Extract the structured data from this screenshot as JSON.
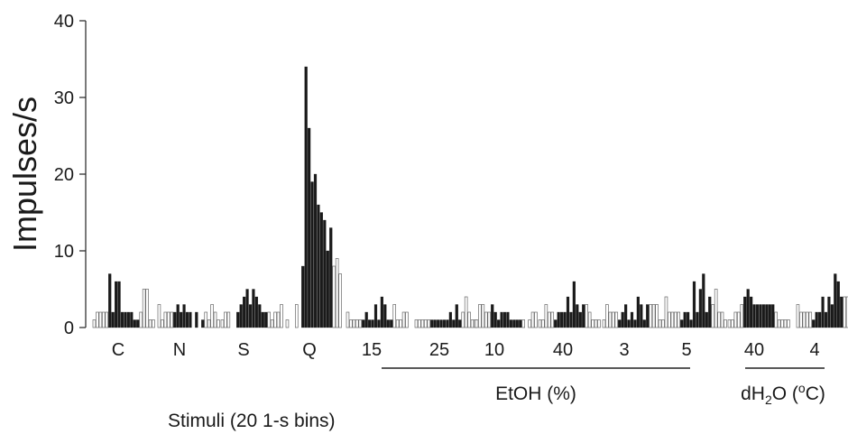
{
  "chart_data": {
    "type": "bar",
    "ylabel": "Impulses/s",
    "xlabel": "Stimuli (20 1-s bins)",
    "ylim": [
      0,
      40
    ],
    "yticks": [
      0,
      10,
      20,
      30,
      40
    ],
    "bins_per_stimulus": 20,
    "bin_encoding": "first 5 and last 5 bins = before/after stimulus (open bars); middle 10 bins = during stimulus (filled bars)",
    "groups": [
      {
        "label": "EtOH (%)",
        "members": [
          "15",
          "25",
          "10",
          "40",
          "3",
          "5"
        ]
      },
      {
        "label_main": "dH",
        "label_sub": "2",
        "label_rest": "O (",
        "label_sup": "o",
        "label_end": "C)",
        "members": [
          "40",
          "4"
        ]
      }
    ],
    "stimuli": [
      {
        "label": "C",
        "values": [
          1,
          2,
          2,
          2,
          2,
          7,
          2,
          6,
          6,
          2,
          2,
          2,
          2,
          1,
          1,
          2,
          5,
          5,
          1,
          1
        ]
      },
      {
        "label": "N",
        "values": [
          3,
          1,
          2,
          2,
          2,
          2,
          3,
          2,
          3,
          2,
          2,
          0,
          2,
          0,
          1,
          2,
          1,
          3,
          2,
          1
        ]
      },
      {
        "label": "S",
        "values": [
          1,
          2,
          2,
          0,
          0,
          2,
          3,
          4,
          5,
          3,
          5,
          4,
          3,
          2,
          2,
          2,
          1,
          2,
          2,
          3
        ]
      },
      {
        "label": "Q",
        "values": [
          1,
          0,
          0,
          3,
          0,
          8,
          34,
          26,
          19,
          20,
          16,
          15,
          14,
          10,
          13,
          8,
          9,
          7,
          0,
          0
        ]
      },
      {
        "label": "15",
        "values": [
          2,
          1,
          1,
          1,
          1,
          1,
          2,
          1,
          1,
          3,
          1,
          4,
          3,
          1,
          1,
          3,
          1,
          1,
          2,
          2
        ]
      },
      {
        "label": "25",
        "values": [
          1,
          1,
          1,
          1,
          1,
          1,
          1,
          1,
          1,
          1,
          1,
          2,
          1,
          3,
          1,
          2,
          4,
          2,
          1,
          1
        ]
      },
      {
        "label": "10",
        "values": [
          1,
          3,
          3,
          2,
          2,
          3,
          2,
          1,
          2,
          2,
          2,
          1,
          1,
          1,
          1,
          1,
          0,
          1,
          2,
          2
        ]
      },
      {
        "label": "40",
        "values": [
          1,
          1,
          3,
          2,
          2,
          1,
          2,
          2,
          2,
          4,
          2,
          6,
          3,
          2,
          3,
          3,
          2,
          1,
          1,
          1
        ]
      },
      {
        "label": "3",
        "values": [
          1,
          3,
          2,
          2,
          2,
          1,
          2,
          3,
          1,
          2,
          1,
          4,
          3,
          1,
          3,
          3,
          3,
          3,
          1,
          1
        ]
      },
      {
        "label": "5",
        "values": [
          4,
          2,
          2,
          2,
          2,
          1,
          2,
          2,
          1,
          6,
          2,
          5,
          7,
          2,
          4,
          3,
          5,
          2,
          2,
          1
        ]
      },
      {
        "label": "40",
        "values": [
          1,
          1,
          2,
          2,
          3,
          4,
          5,
          4,
          3,
          3,
          3,
          3,
          3,
          3,
          3,
          2,
          1,
          1,
          1,
          1
        ]
      },
      {
        "label": "4",
        "values": [
          3,
          2,
          2,
          2,
          2,
          1,
          2,
          2,
          4,
          2,
          4,
          3,
          7,
          6,
          4,
          4,
          4,
          5,
          1,
          1
        ]
      }
    ]
  }
}
